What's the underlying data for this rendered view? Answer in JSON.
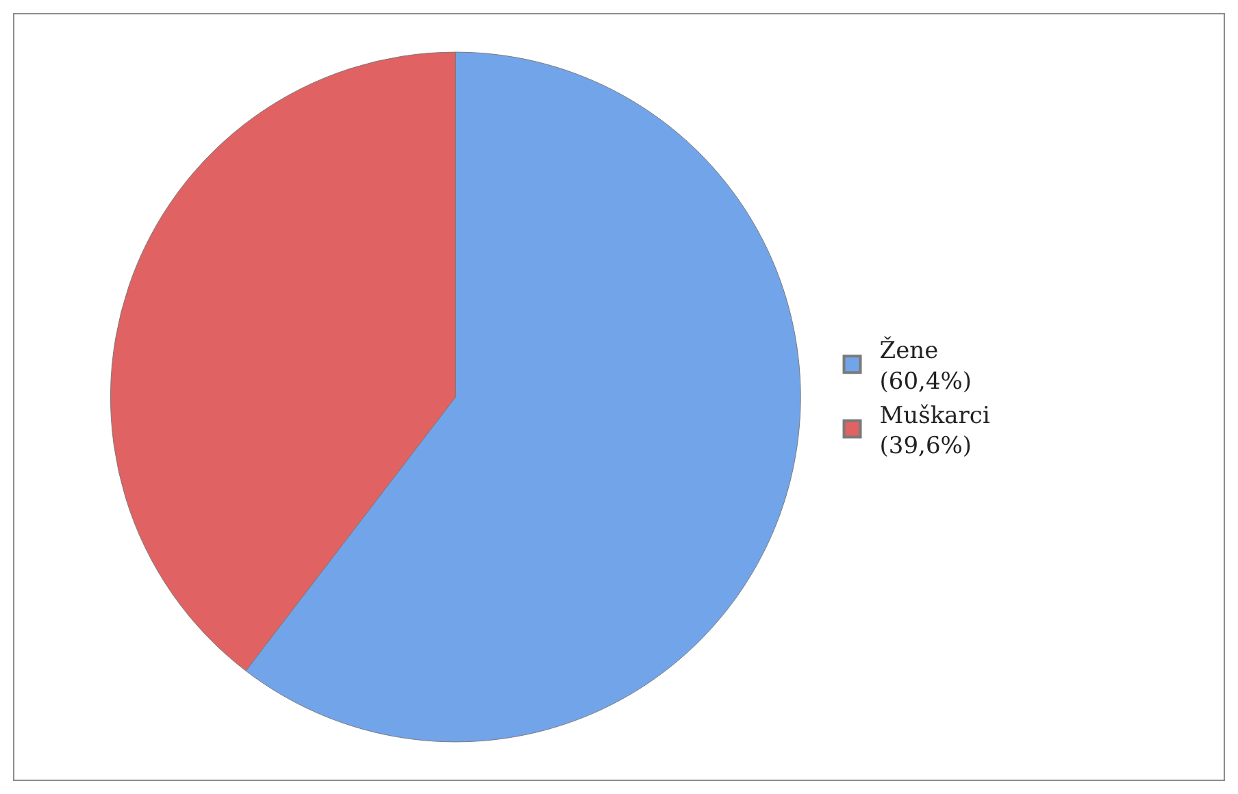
{
  "chart_data": {
    "type": "pie",
    "categories": [
      "Žene\n(60,4%)",
      "Muškarci\n(39,6%)"
    ],
    "values": [
      60.4,
      39.6
    ],
    "colors": [
      "#72a4ea",
      "#e06262"
    ],
    "legend": "right"
  }
}
